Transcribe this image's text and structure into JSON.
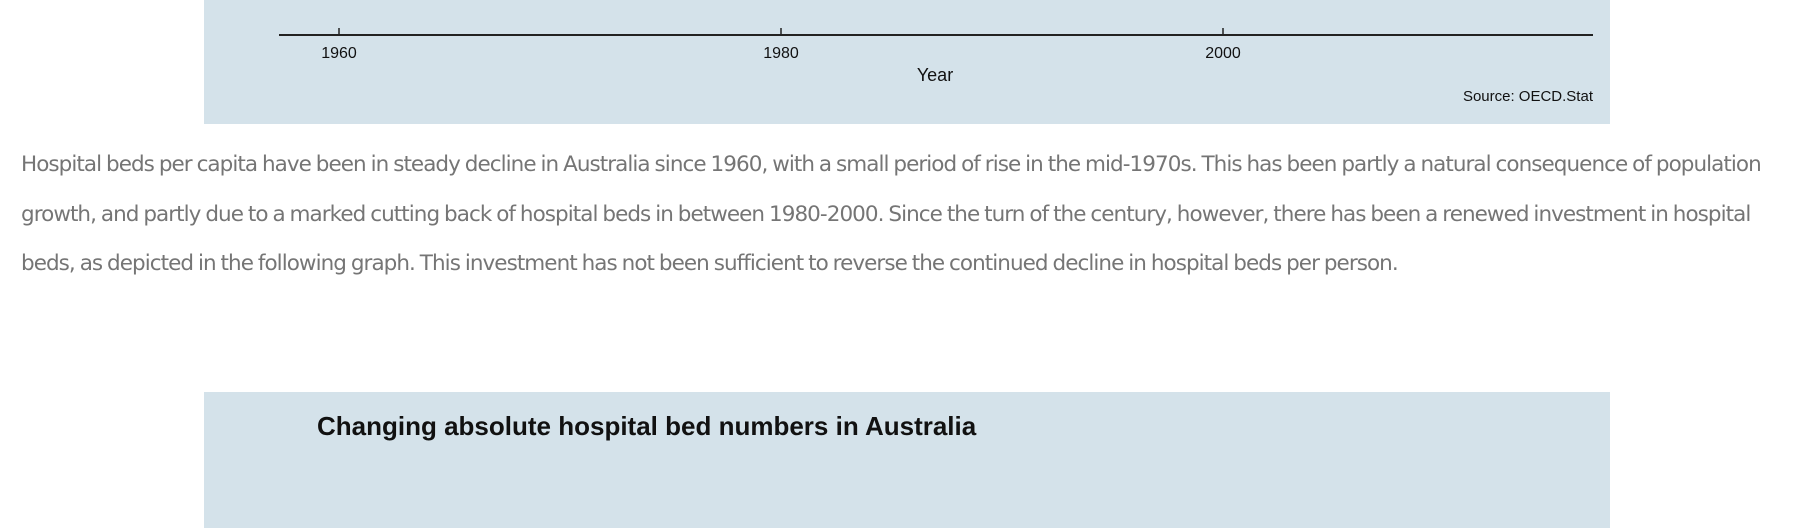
{
  "top_chart": {
    "x_ticks": [
      "1960",
      "1980",
      "2000"
    ],
    "x_axis_label": "Year",
    "source": "Source: OECD.Stat"
  },
  "article": {
    "paragraph": "Hospital beds per capita have been in steady decline in Australia since 1960, with a small period of rise in the mid-1970s. This has been partly a natural consequence of population growth, and partly due to a marked cutting back of hospital beds in between 1980-2000. Since the turn of the century, however, there has been a renewed investment in hospital beds, as depicted in the following graph. This investment has not been sufficient to reverse the continued decline in hospital beds per person."
  },
  "bottom_chart": {
    "title": "Changing absolute hospital bed numbers in Australia"
  },
  "colors": {
    "panel_background": "#d4e2ea",
    "body_text": "#757575"
  }
}
